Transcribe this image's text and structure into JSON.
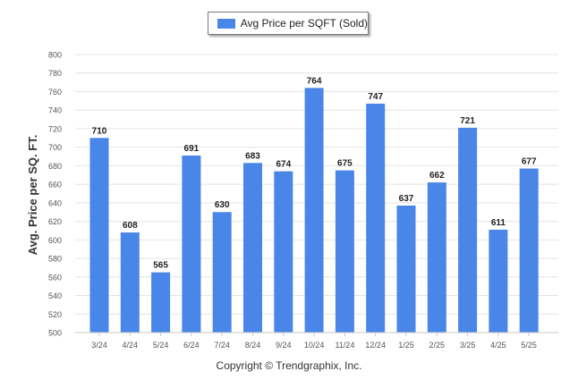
{
  "legend": {
    "label": "Avg Price per SQFT (Sold)"
  },
  "footer": {
    "copyright": "Copyright © Trendgraphix, Inc."
  },
  "colors": {
    "bar": "#4a86e8",
    "grid": "#e4e4e4",
    "axis_text": "#555555",
    "value_text": "#222222"
  },
  "chart_data": {
    "type": "bar",
    "categories": [
      "3/24",
      "4/24",
      "5/24",
      "6/24",
      "7/24",
      "8/24",
      "9/24",
      "10/24",
      "11/24",
      "12/24",
      "1/25",
      "2/25",
      "3/25",
      "4/25",
      "5/25"
    ],
    "series": [
      {
        "name": "Avg Price per SQFT (Sold)",
        "values": [
          710,
          608,
          565,
          691,
          630,
          683,
          674,
          764,
          675,
          747,
          637,
          662,
          721,
          611,
          677
        ]
      }
    ],
    "ylabel": "Avg. Price per SQ. FT.",
    "xlabel": "",
    "ylim": [
      500,
      800
    ],
    "yticks": [
      500,
      520,
      540,
      560,
      580,
      600,
      620,
      640,
      660,
      680,
      700,
      720,
      740,
      760,
      780,
      800
    ],
    "grid": true,
    "legend_position": "top-center",
    "data_labels": true
  }
}
